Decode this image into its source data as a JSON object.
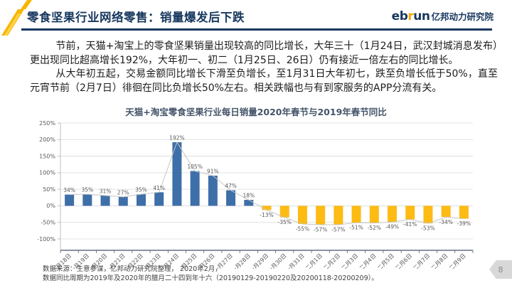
{
  "header": {
    "title": "零食坚果行业网络零售：销量爆发后下跌",
    "logo": {
      "eb": "eb",
      "r": "r",
      "un": "un",
      "cn": "亿邦动力研究院"
    }
  },
  "body": {
    "p1": "节前，天猫+淘宝上的零食坚果销量出现较高的同比增长，大年三十（1月24日，武汉封城消息发布）更出现同比超高增长192%，大年初一、初二（1月25日、26日）仍有接近一倍左右的同比增长。",
    "p2": "从大年初五起，交易金额同比增长下滑至负增长，至1月31日大年初七，跌至负增长低于50%，直至元宵节前（2月7日）徘徊在同比负增长50%左右。相关跌幅也与有到家服务的APP分流有关。"
  },
  "chart_data": {
    "type": "bar",
    "title": "天猫+淘宝零食坚果行业每日销量2020年春节与2019年春节同比",
    "categories": [
      "一月18日",
      "一月19日",
      "一月20日",
      "一月21日",
      "一月22日",
      "一月23日",
      "一月24日",
      "一月25日",
      "一月26日",
      "一月27日",
      "一月28日",
      "一月29日",
      "一月30日",
      "一月31日",
      "二月1日",
      "二月2日",
      "二月3日",
      "二月4日",
      "二月5日",
      "二月6日",
      "二月7日",
      "二月8日",
      "二月9日"
    ],
    "values": [
      34,
      35,
      31,
      27,
      35,
      41,
      192,
      105,
      91,
      47,
      18,
      -13,
      -35,
      -55,
      -57,
      -57,
      -51,
      -52,
      -49,
      -41,
      -53,
      -34,
      -39
    ],
    "xlabel": "",
    "ylabel": "",
    "ylim": [
      -100,
      250
    ],
    "ytick_step": 50,
    "grid": true,
    "legend": "none",
    "label_format": "percent",
    "overlay_line": "same-values",
    "colors": {
      "positive_bar": "#3E6FA8",
      "negative_bar": "#FDBB13",
      "line": "#C6C6C6",
      "data_label": "#595959",
      "tick_label": "#595959",
      "grid": "#DADADA",
      "x_axis": "#44546A",
      "y_axis": "#BFBFBF"
    }
  },
  "footer": {
    "line1": "数据来源：生意参谋，亿邦动力研究院整理， 2020年2月，",
    "line2": "数据同比周期为2019年及2020年的腊月二十四到年十六（20190129-20190220及20200118-20200209）。"
  },
  "page": {
    "number": "8"
  },
  "theme": {
    "navy": "#17375E",
    "gold": "#F7B500"
  }
}
